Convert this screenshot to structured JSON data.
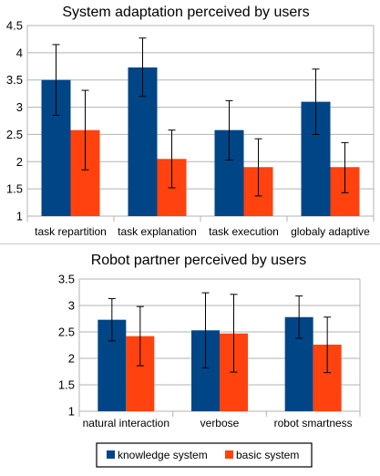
{
  "colors": {
    "knowledge": "#004586",
    "basic": "#ff420e",
    "grid": "#b3b3b3",
    "axis": "#b3b3b3",
    "error": "#000000"
  },
  "chart_data": [
    {
      "type": "bar",
      "title": "System adaptation perceived by users",
      "categories": [
        "task repartition",
        "task explanation",
        "task execution",
        "globaly adaptive"
      ],
      "ylim": [
        1,
        4.5
      ],
      "yticks": [
        "1",
        "1.5",
        "2",
        "2.5",
        "3",
        "3.5",
        "4",
        "4.5"
      ],
      "grid": true,
      "series": [
        {
          "name": "knowledge system",
          "values": [
            3.5,
            3.73,
            2.58,
            3.1
          ],
          "err_low": [
            2.85,
            3.2,
            2.03,
            2.5
          ],
          "err_high": [
            4.15,
            4.27,
            3.12,
            3.7
          ]
        },
        {
          "name": "basic system",
          "values": [
            2.58,
            2.05,
            1.9,
            1.9
          ],
          "err_low": [
            1.85,
            1.52,
            1.37,
            1.43
          ],
          "err_high": [
            3.31,
            2.58,
            2.42,
            2.35
          ]
        }
      ]
    },
    {
      "type": "bar",
      "title": "Robot partner perceived by users",
      "categories": [
        "natural interaction",
        "verbose",
        "robot smartness"
      ],
      "ylim": [
        1,
        3.5
      ],
      "yticks": [
        "1",
        "1.5",
        "2",
        "2.5",
        "3",
        "3.5"
      ],
      "grid": true,
      "series": [
        {
          "name": "knowledge system",
          "values": [
            2.73,
            2.53,
            2.78
          ],
          "err_low": [
            2.33,
            1.82,
            2.38
          ],
          "err_high": [
            3.13,
            3.24,
            3.18
          ]
        },
        {
          "name": "basic system",
          "values": [
            2.42,
            2.47,
            2.26
          ],
          "err_low": [
            1.86,
            1.74,
            1.73
          ],
          "err_high": [
            2.98,
            3.21,
            2.78
          ]
        }
      ]
    }
  ],
  "legend": {
    "placement": "bottom",
    "entries": [
      "knowledge system",
      "basic system"
    ]
  }
}
